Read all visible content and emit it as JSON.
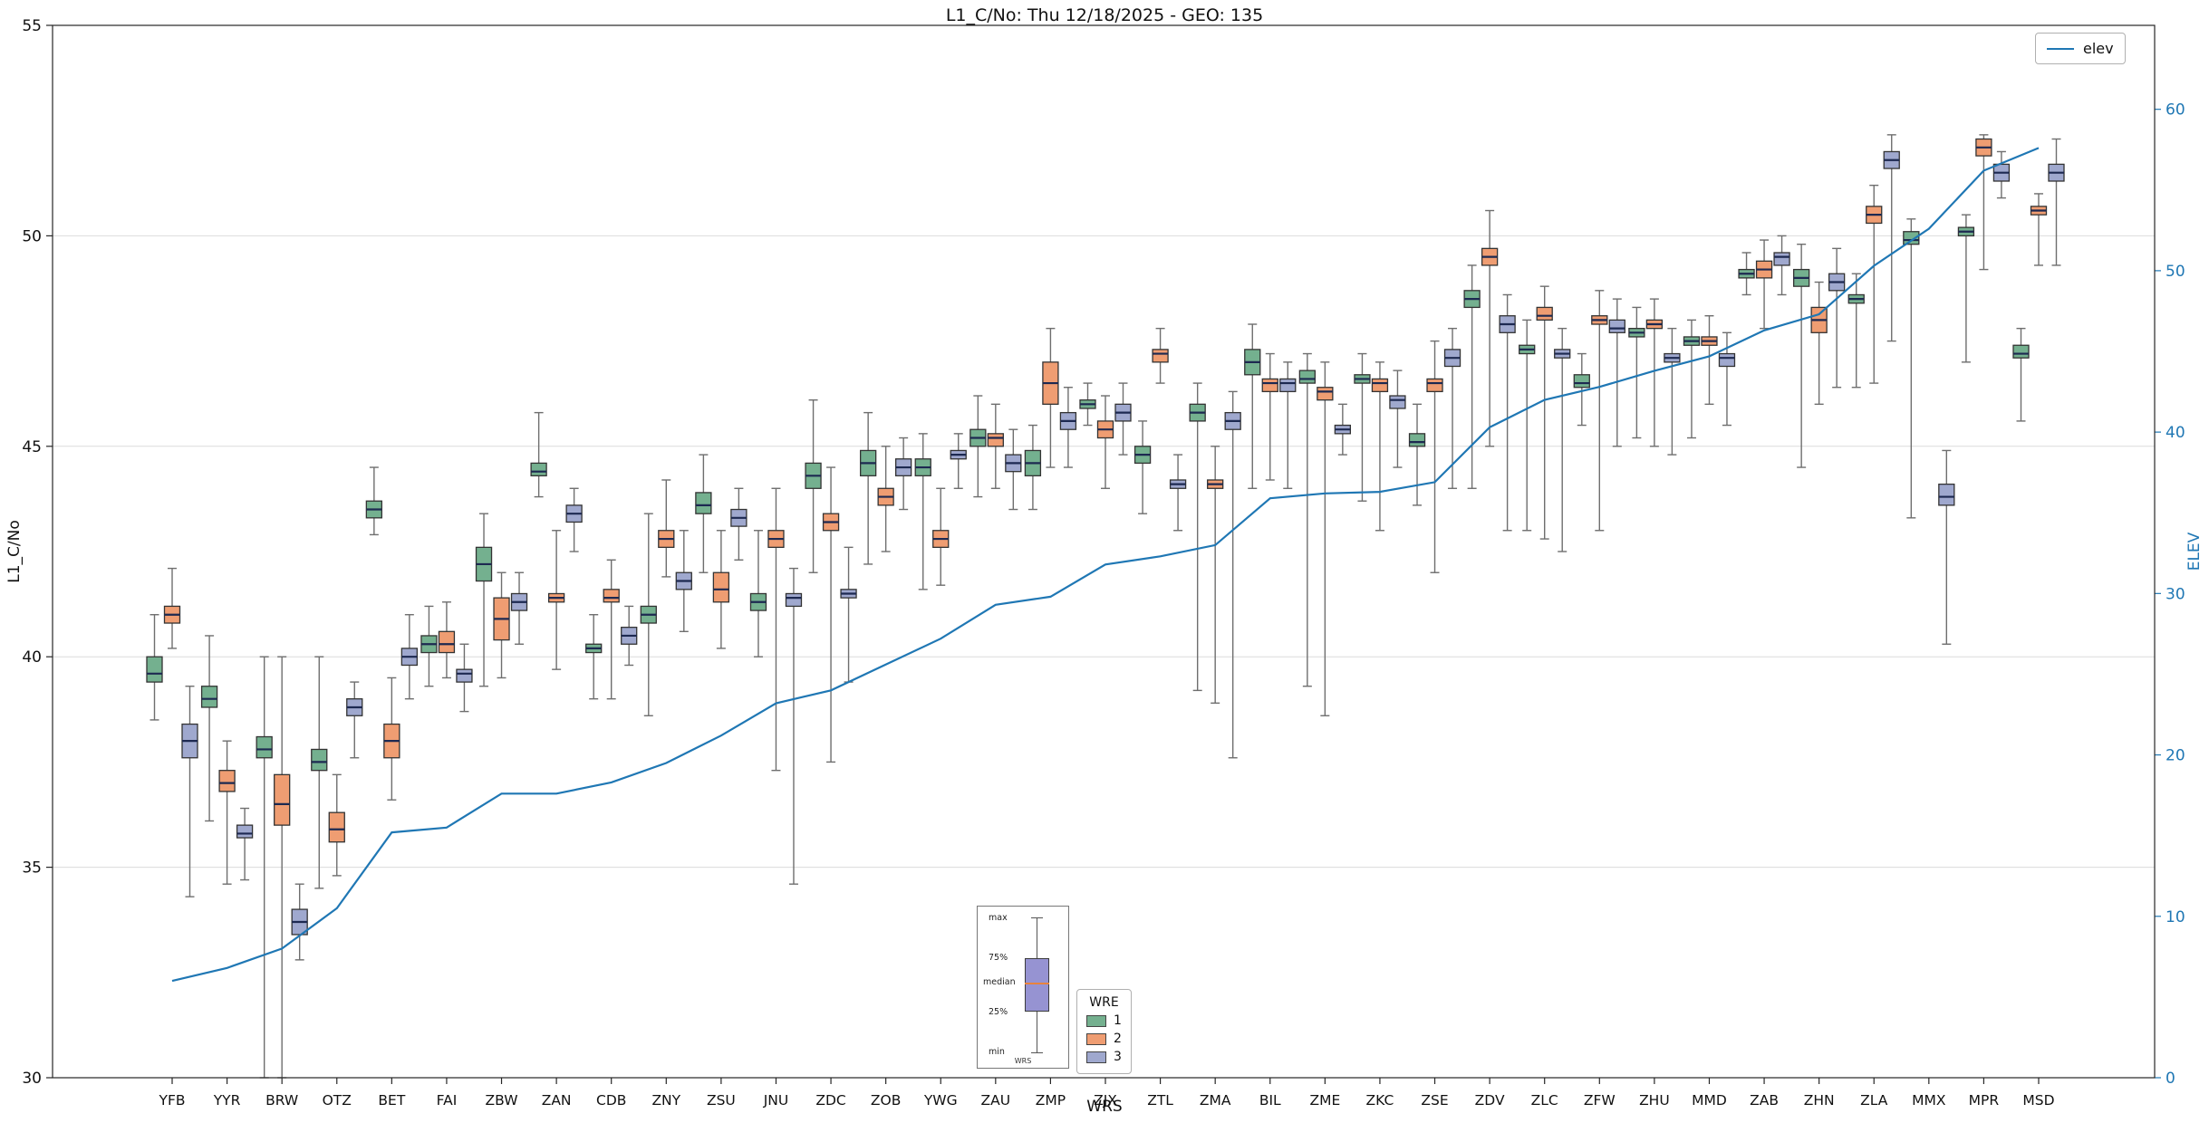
{
  "title": "L1_C/No: Thu 12/18/2025 - GEO: 135",
  "axes": {
    "y_left_label": "L1_C/No",
    "y_right_label": "ELEV",
    "x_label": "WRS"
  },
  "legend_elev": {
    "label": "elev",
    "color": "#1f77b4"
  },
  "legend_wre": {
    "title": "WRE",
    "entries": [
      {
        "label": "1",
        "color": "#74b08f"
      },
      {
        "label": "2",
        "color": "#ef9d72"
      },
      {
        "label": "3",
        "color": "#9fa8ce"
      }
    ]
  },
  "inset": {
    "labels": {
      "max": "max",
      "p75": "75%",
      "median": "median",
      "p25": "25%",
      "min": "min",
      "caption": "WRS"
    }
  },
  "chart_data": {
    "type": "boxplot",
    "title": "L1_C/No: Thu 12/18/2025 - GEO: 135",
    "xlabel": "WRS",
    "ylabel_left": "L1_C/No",
    "ylabel_right": "ELEV",
    "y_left_range": [
      30,
      55
    ],
    "y_left_ticks": [
      30,
      35,
      40,
      45,
      50,
      55
    ],
    "y_right_range": [
      0,
      65.2
    ],
    "y_right_ticks": [
      0,
      10,
      20,
      30,
      40,
      50,
      60
    ],
    "grid": "horizontal",
    "median_color": "#1d2951",
    "whisker_color": "#6e6e6e",
    "box_edge_color": "#333333",
    "categories": [
      "YFB",
      "YYR",
      "BRW",
      "OTZ",
      "BET",
      "FAI",
      "ZBW",
      "ZAN",
      "CDB",
      "ZNY",
      "ZSU",
      "JNU",
      "ZDC",
      "ZOB",
      "YWG",
      "ZAU",
      "ZMP",
      "ZJX",
      "ZTL",
      "ZMA",
      "BIL",
      "ZME",
      "ZKC",
      "ZSE",
      "ZDV",
      "ZLC",
      "ZFW",
      "ZHU",
      "MMD",
      "ZAB",
      "ZHN",
      "ZLA",
      "MMX",
      "MPR",
      "MSD"
    ],
    "box_format": [
      "whisker_low",
      "q1",
      "median",
      "q3",
      "whisker_high"
    ],
    "series": [
      {
        "name": "1",
        "color": "#74b08f",
        "boxes": [
          [
            38.5,
            39.4,
            39.6,
            40.0,
            41.0
          ],
          [
            36.1,
            38.8,
            39.0,
            39.3,
            40.5
          ],
          [
            30.0,
            37.6,
            37.8,
            38.1,
            40.0
          ],
          [
            34.5,
            37.3,
            37.5,
            37.8,
            40.0
          ],
          [
            42.9,
            43.3,
            43.5,
            43.7,
            44.5
          ],
          [
            39.3,
            40.1,
            40.3,
            40.5,
            41.2
          ],
          [
            39.3,
            41.8,
            42.2,
            42.6,
            43.4
          ],
          [
            43.8,
            44.3,
            44.4,
            44.6,
            45.8
          ],
          [
            39.0,
            40.1,
            40.2,
            40.3,
            41.0
          ],
          [
            38.6,
            40.8,
            41.0,
            41.2,
            43.4
          ],
          [
            42.0,
            43.4,
            43.6,
            43.9,
            44.8
          ],
          [
            40.0,
            41.1,
            41.3,
            41.5,
            43.0
          ],
          [
            42.0,
            44.0,
            44.3,
            44.6,
            46.1
          ],
          [
            42.2,
            44.3,
            44.6,
            44.9,
            45.8
          ],
          [
            41.6,
            44.3,
            44.5,
            44.7,
            45.3
          ],
          [
            43.8,
            45.0,
            45.2,
            45.4,
            46.2
          ],
          [
            43.5,
            44.3,
            44.6,
            44.9,
            45.5
          ],
          [
            45.5,
            45.9,
            46.0,
            46.1,
            46.5
          ],
          [
            43.4,
            44.6,
            44.8,
            45.0,
            45.6
          ],
          [
            39.2,
            45.6,
            45.8,
            46.0,
            46.5
          ],
          [
            44.0,
            46.7,
            47.0,
            47.3,
            47.9
          ],
          [
            39.3,
            46.5,
            46.6,
            46.8,
            47.2
          ],
          [
            43.7,
            46.5,
            46.6,
            46.7,
            47.2
          ],
          [
            43.6,
            45.0,
            45.1,
            45.3,
            46.0
          ],
          [
            44.0,
            48.3,
            48.5,
            48.7,
            49.3
          ],
          [
            43.0,
            47.2,
            47.3,
            47.4,
            48.0
          ],
          [
            45.5,
            46.4,
            46.5,
            46.7,
            47.2
          ],
          [
            45.2,
            47.6,
            47.7,
            47.8,
            48.3
          ],
          [
            45.2,
            47.4,
            47.5,
            47.6,
            48.0
          ],
          [
            48.6,
            49.0,
            49.1,
            49.2,
            49.6
          ],
          [
            44.5,
            48.8,
            49.0,
            49.2,
            49.8
          ],
          [
            46.4,
            48.4,
            48.5,
            48.6,
            49.1
          ],
          [
            43.3,
            49.8,
            49.9,
            50.1,
            50.4
          ],
          [
            47.0,
            50.0,
            50.1,
            50.2,
            50.5
          ],
          [
            45.6,
            47.1,
            47.2,
            47.4,
            47.8
          ]
        ]
      },
      {
        "name": "2",
        "color": "#ef9d72",
        "boxes": [
          [
            40.2,
            40.8,
            41.0,
            41.2,
            42.1
          ],
          [
            34.6,
            36.8,
            37.0,
            37.3,
            38.0
          ],
          [
            30.0,
            36.0,
            36.5,
            37.2,
            40.0
          ],
          [
            34.8,
            35.6,
            35.9,
            36.3,
            37.2
          ],
          [
            36.6,
            37.6,
            38.0,
            38.4,
            39.5
          ],
          [
            39.5,
            40.1,
            40.3,
            40.6,
            41.3
          ],
          [
            39.5,
            40.4,
            40.9,
            41.4,
            42.0
          ],
          [
            39.7,
            41.3,
            41.4,
            41.5,
            43.0
          ],
          [
            39.0,
            41.3,
            41.4,
            41.6,
            42.3
          ],
          [
            41.9,
            42.6,
            42.8,
            43.0,
            44.2
          ],
          [
            40.2,
            41.3,
            41.6,
            42.0,
            43.0
          ],
          [
            37.3,
            42.6,
            42.8,
            43.0,
            44.0
          ],
          [
            37.5,
            43.0,
            43.2,
            43.4,
            44.5
          ],
          [
            42.5,
            43.6,
            43.8,
            44.0,
            45.0
          ],
          [
            41.7,
            42.6,
            42.8,
            43.0,
            44.0
          ],
          [
            44.0,
            45.0,
            45.2,
            45.3,
            46.0
          ],
          [
            44.5,
            46.0,
            46.5,
            47.0,
            47.8
          ],
          [
            44.0,
            45.2,
            45.4,
            45.6,
            46.2
          ],
          [
            46.5,
            47.0,
            47.2,
            47.3,
            47.8
          ],
          [
            38.9,
            44.0,
            44.1,
            44.2,
            45.0
          ],
          [
            44.2,
            46.3,
            46.5,
            46.6,
            47.2
          ],
          [
            38.6,
            46.1,
            46.3,
            46.4,
            47.0
          ],
          [
            43.0,
            46.3,
            46.5,
            46.6,
            47.0
          ],
          [
            42.0,
            46.3,
            46.5,
            46.6,
            47.5
          ],
          [
            45.0,
            49.3,
            49.5,
            49.7,
            50.6
          ],
          [
            42.8,
            48.0,
            48.1,
            48.3,
            48.8
          ],
          [
            43.0,
            47.9,
            48.0,
            48.1,
            48.7
          ],
          [
            45.0,
            47.8,
            47.9,
            48.0,
            48.5
          ],
          [
            46.0,
            47.4,
            47.5,
            47.6,
            48.1
          ],
          [
            47.8,
            49.0,
            49.2,
            49.4,
            49.9
          ],
          [
            46.0,
            47.7,
            48.0,
            48.3,
            48.9
          ],
          [
            46.5,
            50.3,
            50.5,
            50.7,
            51.2
          ],
          null,
          [
            49.2,
            51.9,
            52.1,
            52.3,
            52.4
          ],
          [
            49.3,
            50.5,
            50.6,
            50.7,
            51.0
          ]
        ]
      },
      {
        "name": "3",
        "color": "#9fa8ce",
        "boxes": [
          [
            34.3,
            37.6,
            38.0,
            38.4,
            39.3
          ],
          [
            34.7,
            35.7,
            35.8,
            36.0,
            36.4
          ],
          [
            32.8,
            33.4,
            33.7,
            34.0,
            34.6
          ],
          [
            37.6,
            38.6,
            38.8,
            39.0,
            39.4
          ],
          [
            39.0,
            39.8,
            40.0,
            40.2,
            41.0
          ],
          [
            38.7,
            39.4,
            39.6,
            39.7,
            40.3
          ],
          [
            40.3,
            41.1,
            41.3,
            41.5,
            42.0
          ],
          [
            42.5,
            43.2,
            43.4,
            43.6,
            44.0
          ],
          [
            39.8,
            40.3,
            40.5,
            40.7,
            41.2
          ],
          [
            40.6,
            41.6,
            41.8,
            42.0,
            43.0
          ],
          [
            42.3,
            43.1,
            43.3,
            43.5,
            44.0
          ],
          [
            34.6,
            41.2,
            41.4,
            41.5,
            42.1
          ],
          [
            39.4,
            41.4,
            41.5,
            41.6,
            42.6
          ],
          [
            43.5,
            44.3,
            44.5,
            44.7,
            45.2
          ],
          [
            44.0,
            44.7,
            44.8,
            44.9,
            45.3
          ],
          [
            43.5,
            44.4,
            44.6,
            44.8,
            45.4
          ],
          [
            44.5,
            45.4,
            45.6,
            45.8,
            46.4
          ],
          [
            44.8,
            45.6,
            45.8,
            46.0,
            46.5
          ],
          [
            43.0,
            44.0,
            44.1,
            44.2,
            44.8
          ],
          [
            37.6,
            45.4,
            45.6,
            45.8,
            46.3
          ],
          [
            44.0,
            46.3,
            46.5,
            46.6,
            47.0
          ],
          [
            44.8,
            45.3,
            45.4,
            45.5,
            46.0
          ],
          [
            44.5,
            45.9,
            46.1,
            46.2,
            46.8
          ],
          [
            44.0,
            46.9,
            47.1,
            47.3,
            47.8
          ],
          [
            43.0,
            47.7,
            47.9,
            48.1,
            48.6
          ],
          [
            42.5,
            47.1,
            47.2,
            47.3,
            47.8
          ],
          [
            45.0,
            47.7,
            47.8,
            48.0,
            48.5
          ],
          [
            44.8,
            47.0,
            47.1,
            47.2,
            47.8
          ],
          [
            45.5,
            46.9,
            47.1,
            47.2,
            47.7
          ],
          [
            48.6,
            49.3,
            49.5,
            49.6,
            50.0
          ],
          [
            46.4,
            48.7,
            48.9,
            49.1,
            49.7
          ],
          [
            47.5,
            51.6,
            51.8,
            52.0,
            52.4
          ],
          [
            40.3,
            43.6,
            43.8,
            44.1,
            44.9
          ],
          [
            50.9,
            51.3,
            51.5,
            51.7,
            52.0
          ],
          [
            49.3,
            51.3,
            51.5,
            51.7,
            52.3
          ]
        ]
      }
    ],
    "elev": {
      "name": "elev",
      "color": "#1f77b4",
      "axis": "right",
      "values": [
        6.0,
        6.8,
        8.0,
        10.5,
        15.2,
        15.5,
        17.6,
        17.6,
        18.3,
        19.5,
        21.2,
        23.2,
        24.0,
        25.6,
        27.2,
        29.3,
        29.8,
        31.8,
        32.3,
        33.0,
        35.9,
        36.2,
        36.3,
        36.9,
        40.3,
        42.0,
        42.8,
        43.8,
        44.7,
        46.3,
        47.3,
        50.3,
        52.6,
        56.2,
        57.6
      ]
    }
  }
}
